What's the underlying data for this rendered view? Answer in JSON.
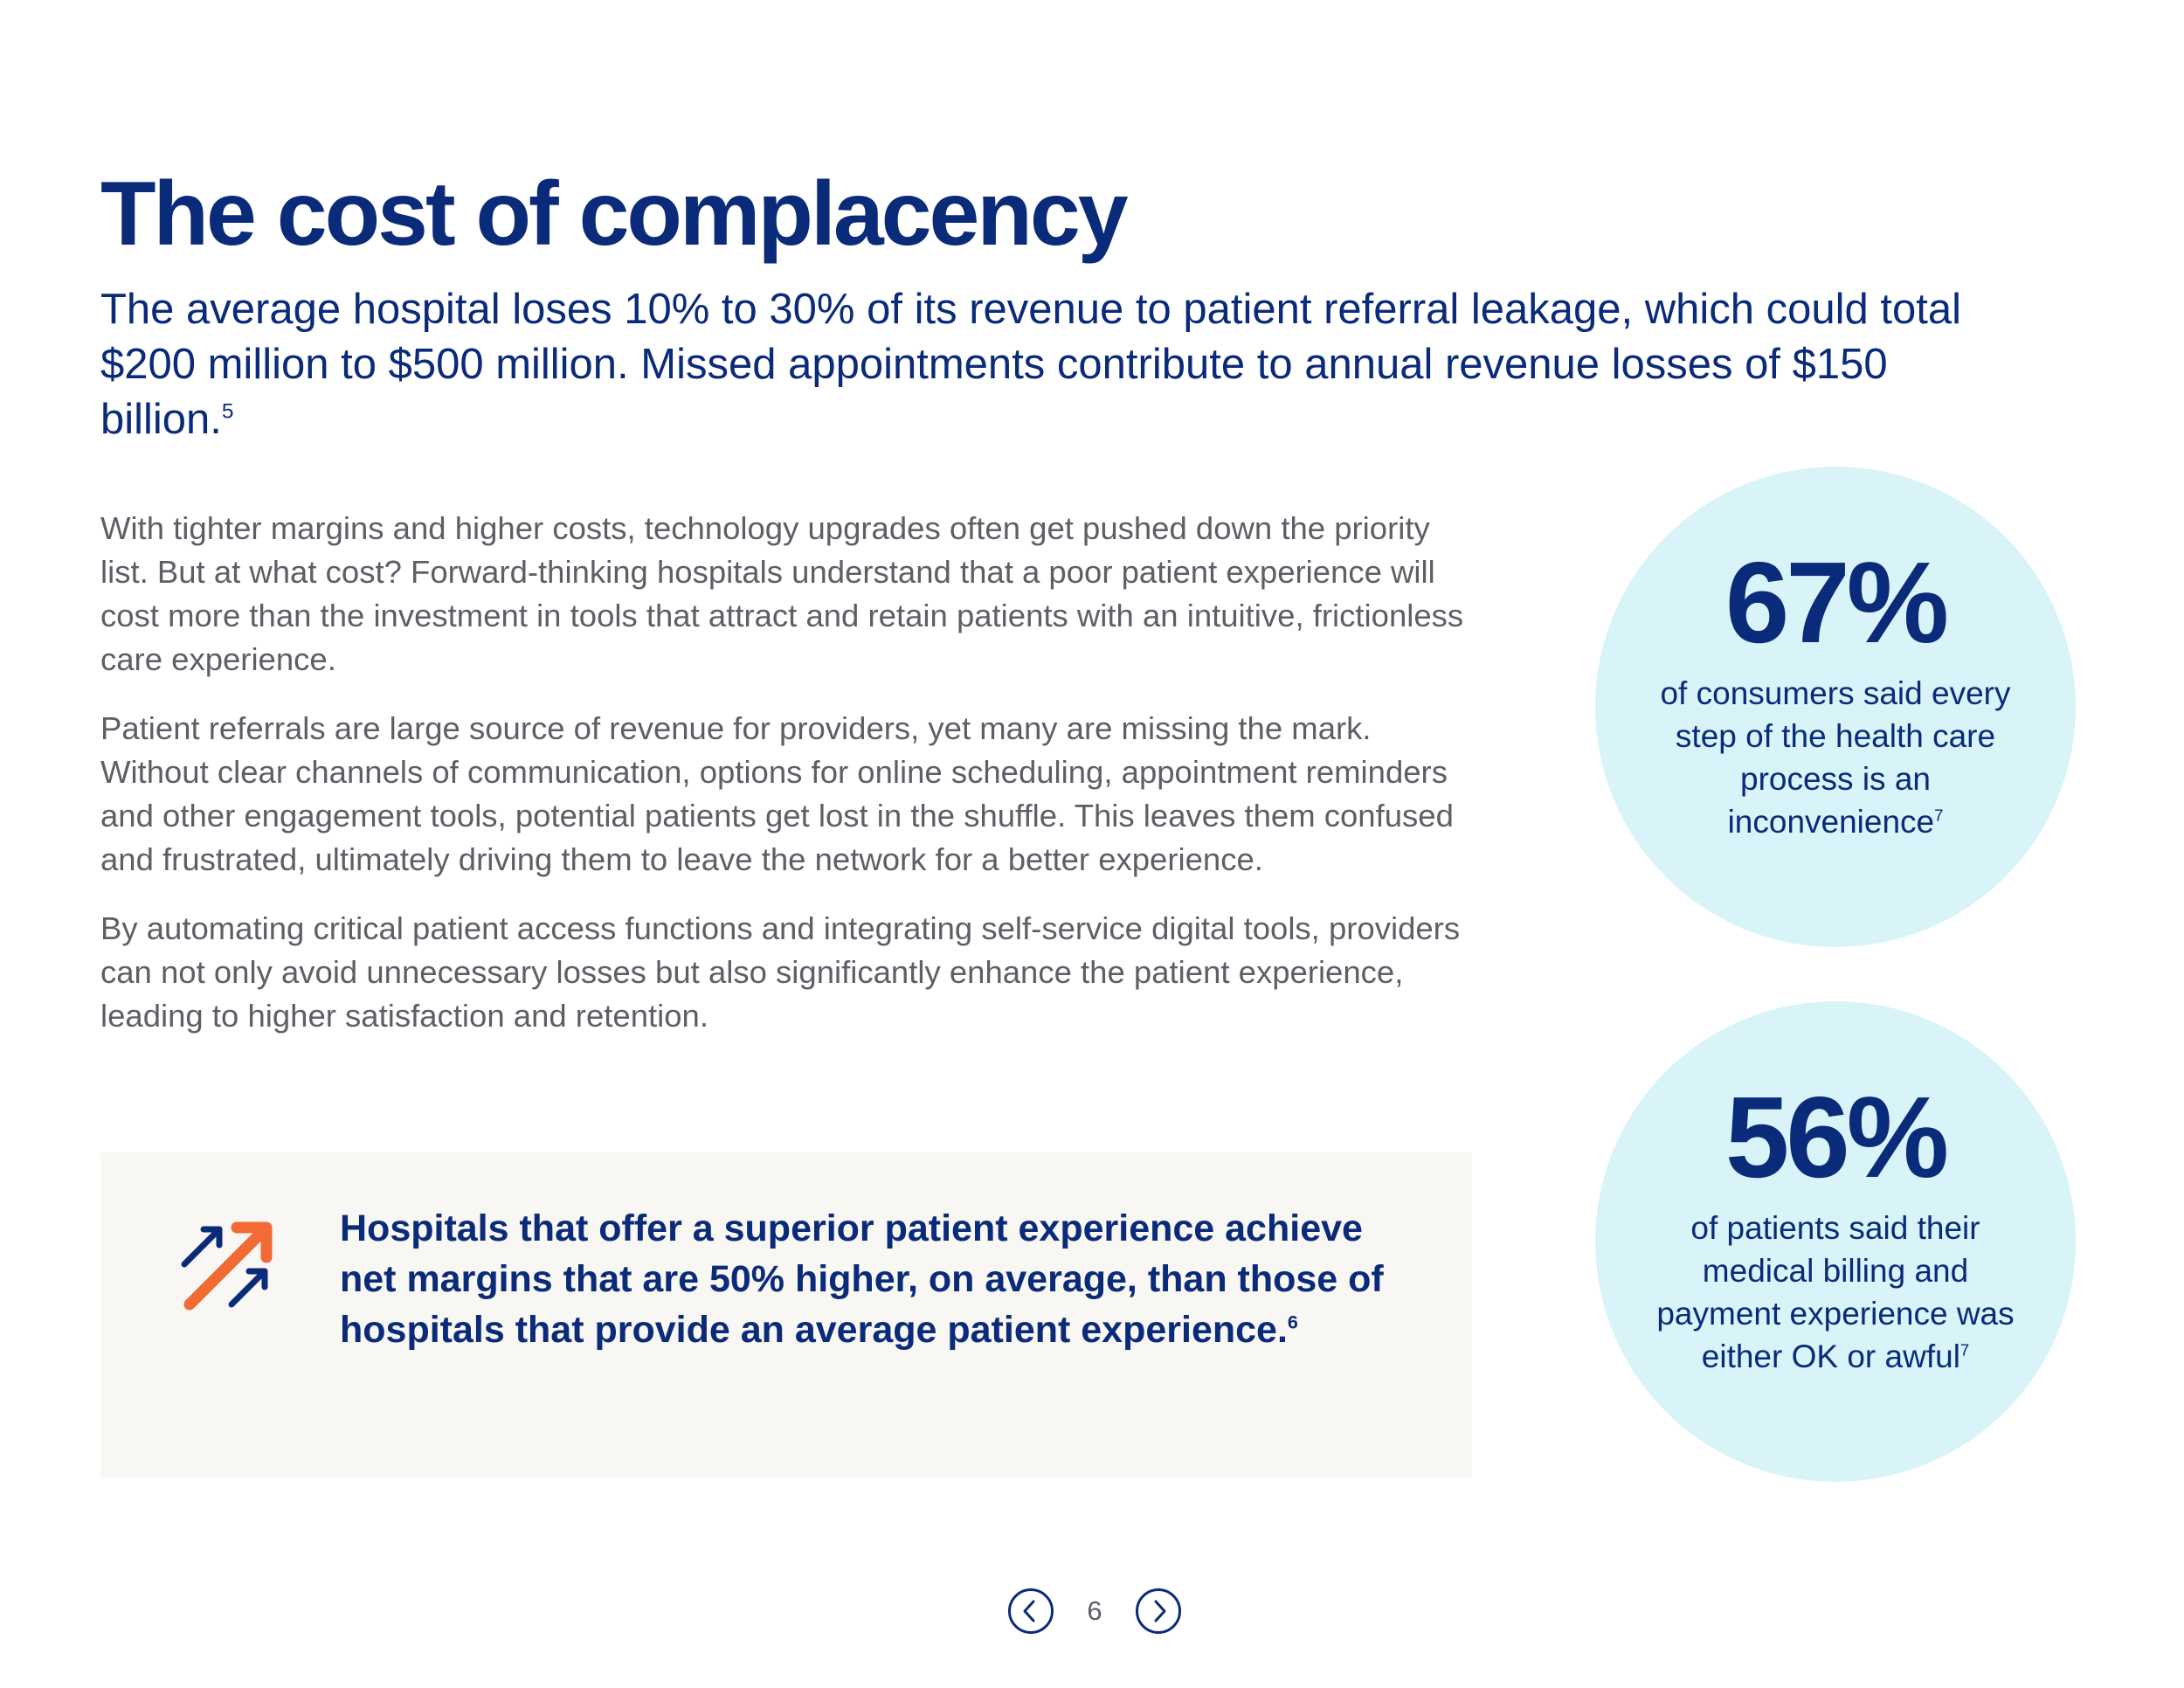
{
  "page": {
    "title": "The cost of complacency",
    "lead": {
      "text": "The average hospital loses 10% to 30% of its revenue to patient referral leakage, which could total $200 million to $500 million. Missed appointments contribute to annual revenue losses of $150 billion.",
      "footnote": "5"
    },
    "body": [
      "With tighter margins and higher costs, technology upgrades often get pushed down the priority list. But at what cost? Forward-thinking hospitals understand that a poor patient experience will cost more than the investment in tools that attract and retain patients with an intuitive, frictionless care experience.",
      "Patient referrals are large source of revenue for providers, yet many are missing the mark. Without clear channels of communication, options for online scheduling, appointment reminders and other engagement tools, potential patients get lost in the shuffle. This leaves them confused and frustrated, ultimately driving them to leave the network for a better experience.",
      "By automating critical patient access functions and integrating self-service digital tools, providers can not only avoid unnecessary losses but also significantly enhance the patient experience, leading to higher satisfaction and retention."
    ],
    "callout": {
      "icon": "trending-up-arrows-icon",
      "text": "Hospitals that offer a superior patient experience achieve net margins that are 50% higher, on average, than those of hospitals that provide an average patient experience.",
      "footnote": "6"
    },
    "stats": [
      {
        "value": "67%",
        "label": "of consumers said every step of the health care process is an inconvenience",
        "footnote": "7"
      },
      {
        "value": "56%",
        "label": "of patients said their medical billing and payment experience was either OK or awful",
        "footnote": "7"
      }
    ]
  },
  "pager": {
    "page_number": "6",
    "prev_icon": "chevron-left-icon",
    "next_icon": "chevron-right-icon"
  },
  "colors": {
    "navy": "#0a2a7a",
    "body_gray": "#5c5f66",
    "circle_bg": "#d8f4f8",
    "callout_bg": "#f9f7f3",
    "accent_orange": "#f26a35"
  }
}
